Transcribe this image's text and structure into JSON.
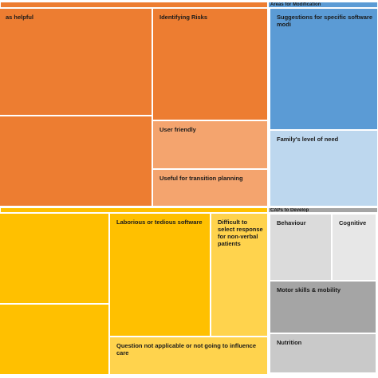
{
  "chart_data": {
    "type": "treemap",
    "groups": [
      {
        "name": "",
        "color": "#ED7D31",
        "items": [
          {
            "label": "as helpful",
            "color": "#ED7D31"
          },
          {
            "label": "",
            "color": "#ED7D31"
          },
          {
            "label": "Identifying Risks",
            "color": "#ED7D31"
          },
          {
            "label": "User friendly",
            "color": "#F4A46E"
          },
          {
            "label": "Useful for transition planning",
            "color": "#F4A46E"
          }
        ]
      },
      {
        "name": "Areas for Modification",
        "color": "#5B9BD5",
        "items": [
          {
            "label": "Suggestions for specific software modi",
            "color": "#5B9BD5"
          },
          {
            "label": "Family's level of need",
            "color": "#BDD7EE"
          }
        ]
      },
      {
        "name": "",
        "color": "#FFC000",
        "items": [
          {
            "label": "",
            "color": "#FFC000"
          },
          {
            "label": "",
            "color": "#FFC000"
          },
          {
            "label": "Laborious or tedious software",
            "color": "#FFC000"
          },
          {
            "label": "Difficult to select response for non-verbal patients",
            "color": "#FFD34D"
          },
          {
            "label": "Question not applicable or not going to influence care",
            "color": "#FFD34D"
          }
        ]
      },
      {
        "name": "CAPs to Develop",
        "color": "#A5A5A5",
        "items": [
          {
            "label": "Behaviour",
            "color": "#DBDBDB"
          },
          {
            "label": "Cognitive",
            "color": "#E7E7E7"
          },
          {
            "label": "Motor skills & mobility",
            "color": "#A5A5A5"
          },
          {
            "label": "Nutrition",
            "color": "#C9C9C9"
          }
        ]
      }
    ]
  }
}
